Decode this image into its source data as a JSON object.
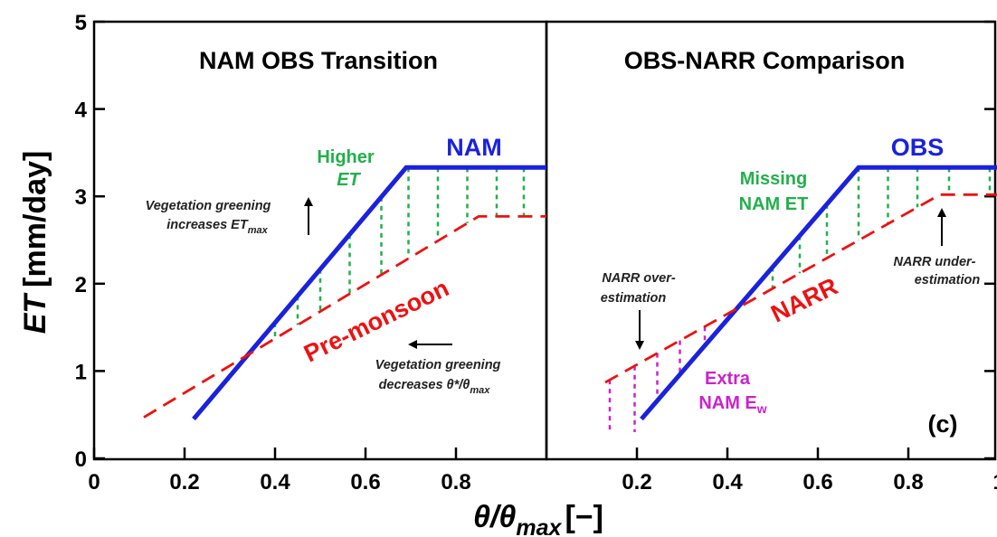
{
  "chart_data": [
    {
      "type": "line",
      "panel": "left",
      "title": "NAM OBS Transition",
      "xlabel": "θ/θmax [−]",
      "ylabel": "ET [mm/day]",
      "xlim": [
        0,
        1
      ],
      "ylim": [
        0,
        5
      ],
      "x_ticks": [
        "0",
        "0.2",
        "0.4",
        "0.6",
        "0.8"
      ],
      "y_ticks": [
        "0",
        "1",
        "2",
        "3",
        "4",
        "5"
      ],
      "grid": false,
      "series": [
        {
          "name": "NAM",
          "color": "#1a22dd",
          "style": "solid",
          "points": [
            [
              0.22,
              0.45
            ],
            [
              0.69,
              3.33
            ],
            [
              1.0,
              3.33
            ]
          ]
        },
        {
          "name": "Pre-monsoon",
          "color": "#ee1111",
          "style": "dashed",
          "points": [
            [
              0.11,
              0.47
            ],
            [
              0.85,
              2.77
            ],
            [
              1.0,
              2.77
            ]
          ]
        }
      ],
      "fill_lines": {
        "color": "#22b04b",
        "x": [
          0.4,
          0.45,
          0.5,
          0.565,
          0.635,
          0.695,
          0.76,
          0.825,
          0.89,
          0.95
        ]
      },
      "annotations": {
        "higher_1": "Higher",
        "higher_2": "ET",
        "greening_1a": "Vegetation greening",
        "greening_1b": "increases ET",
        "greening_1sub": "max",
        "greening_2a": "Vegetation greening",
        "greening_2b": "decreases θ*/θ",
        "greening_2sub": "max"
      }
    },
    {
      "type": "line",
      "panel": "right",
      "title": "OBS-NARR Comparison",
      "xlabel": "θ/θmax [−]",
      "ylabel": "ET [mm/day]",
      "xlim": [
        0,
        1
      ],
      "ylim": [
        0,
        5
      ],
      "x_ticks": [
        "0.2",
        "0.4",
        "0.6",
        "0.8",
        "1"
      ],
      "grid": false,
      "series": [
        {
          "name": "OBS",
          "color": "#1a22dd",
          "style": "solid",
          "points": [
            [
              0.21,
              0.45
            ],
            [
              0.69,
              3.33
            ],
            [
              1.0,
              3.33
            ]
          ]
        },
        {
          "name": "NARR",
          "color": "#ee1111",
          "style": "dashed",
          "points": [
            [
              0.13,
              0.87
            ],
            [
              0.87,
              3.02
            ],
            [
              1.0,
              3.02
            ]
          ]
        }
      ],
      "fill_lines_green": {
        "color": "#22b04b",
        "x": [
          0.5,
          0.56,
          0.62,
          0.69,
          0.755,
          0.82,
          0.89,
          0.98
        ]
      },
      "fill_lines_magenta": {
        "color": "#cc22cc",
        "x": [
          0.14,
          0.195,
          0.245,
          0.295,
          0.35
        ]
      },
      "annotations": {
        "missing_1": "Missing",
        "missing_2": "NAM ET",
        "extra_1": "Extra",
        "extra_2": "NAM E",
        "extra_sub": "w",
        "over_1": "NARR over-",
        "over_2": "estimation",
        "under_1": "NARR under-",
        "under_2": "estimation",
        "panel_tag": "(c)"
      }
    }
  ],
  "axis_labels": {
    "ylabel_main": "ET",
    "ylabel_units": "[mm/day]",
    "xlabel_theta": "θ/θ",
    "xlabel_sub": "max",
    "xlabel_units": "[−]"
  }
}
